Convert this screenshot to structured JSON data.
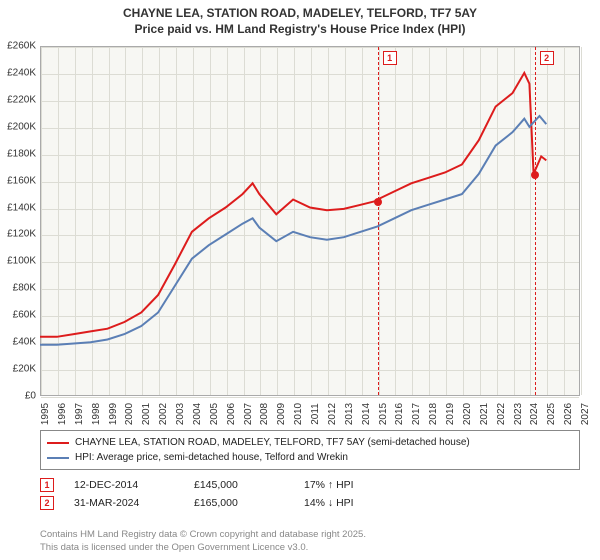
{
  "title_line1": "CHAYNE LEA, STATION ROAD, MADELEY, TELFORD, TF7 5AY",
  "title_line2": "Price paid vs. HM Land Registry's House Price Index (HPI)",
  "chart": {
    "type": "line",
    "background_color": "#f7f7f3",
    "grid_color": "#dcdcd4",
    "border_color": "#aaaaaa",
    "xlim": [
      1995,
      2027
    ],
    "ylim": [
      0,
      260000
    ],
    "xtick_step": 1,
    "ytick_step": 20000,
    "ytick_labels": [
      "£0",
      "£20K",
      "£40K",
      "£60K",
      "£80K",
      "£100K",
      "£120K",
      "£140K",
      "£160K",
      "£180K",
      "£200K",
      "£220K",
      "£240K",
      "£260K"
    ],
    "xtick_labels": [
      "1995",
      "1996",
      "1997",
      "1998",
      "1999",
      "2000",
      "2001",
      "2002",
      "2003",
      "2004",
      "2005",
      "2006",
      "2007",
      "2008",
      "2009",
      "2010",
      "2011",
      "2012",
      "2013",
      "2014",
      "2015",
      "2016",
      "2017",
      "2018",
      "2019",
      "2020",
      "2021",
      "2022",
      "2023",
      "2024",
      "2025",
      "2026",
      "2027"
    ],
    "series": [
      {
        "name": "CHAYNE LEA, STATION ROAD, MADELEY, TELFORD, TF7 5AY (semi-detached house)",
        "color": "#dd1c1c",
        "line_width": 2,
        "points": [
          [
            1995,
            44000
          ],
          [
            1996,
            44000
          ],
          [
            1997,
            46000
          ],
          [
            1998,
            48000
          ],
          [
            1999,
            50000
          ],
          [
            2000,
            55000
          ],
          [
            2001,
            62000
          ],
          [
            2002,
            75000
          ],
          [
            2003,
            98000
          ],
          [
            2004,
            122000
          ],
          [
            2005,
            132000
          ],
          [
            2006,
            140000
          ],
          [
            2007,
            150000
          ],
          [
            2007.6,
            158000
          ],
          [
            2008,
            150000
          ],
          [
            2009,
            135000
          ],
          [
            2010,
            146000
          ],
          [
            2011,
            140000
          ],
          [
            2012,
            138000
          ],
          [
            2013,
            139000
          ],
          [
            2014,
            142000
          ],
          [
            2014.95,
            145000
          ],
          [
            2015,
            146000
          ],
          [
            2016,
            152000
          ],
          [
            2017,
            158000
          ],
          [
            2018,
            162000
          ],
          [
            2019,
            166000
          ],
          [
            2020,
            172000
          ],
          [
            2021,
            190000
          ],
          [
            2022,
            215000
          ],
          [
            2023,
            225000
          ],
          [
            2023.7,
            240000
          ],
          [
            2024,
            232000
          ],
          [
            2024.25,
            165000
          ],
          [
            2024.7,
            178000
          ],
          [
            2025,
            175000
          ]
        ]
      },
      {
        "name": "HPI: Average price, semi-detached house, Telford and Wrekin",
        "color": "#5b7fb5",
        "line_width": 2,
        "points": [
          [
            1995,
            38000
          ],
          [
            1996,
            38000
          ],
          [
            1997,
            39000
          ],
          [
            1998,
            40000
          ],
          [
            1999,
            42000
          ],
          [
            2000,
            46000
          ],
          [
            2001,
            52000
          ],
          [
            2002,
            62000
          ],
          [
            2003,
            82000
          ],
          [
            2004,
            102000
          ],
          [
            2005,
            112000
          ],
          [
            2006,
            120000
          ],
          [
            2007,
            128000
          ],
          [
            2007.6,
            132000
          ],
          [
            2008,
            125000
          ],
          [
            2009,
            115000
          ],
          [
            2010,
            122000
          ],
          [
            2011,
            118000
          ],
          [
            2012,
            116000
          ],
          [
            2013,
            118000
          ],
          [
            2014,
            122000
          ],
          [
            2015,
            126000
          ],
          [
            2016,
            132000
          ],
          [
            2017,
            138000
          ],
          [
            2018,
            142000
          ],
          [
            2019,
            146000
          ],
          [
            2020,
            150000
          ],
          [
            2021,
            165000
          ],
          [
            2022,
            186000
          ],
          [
            2023,
            196000
          ],
          [
            2023.7,
            206000
          ],
          [
            2024,
            200000
          ],
          [
            2024.6,
            208000
          ],
          [
            2025,
            202000
          ]
        ]
      }
    ],
    "markers": [
      {
        "num": "1",
        "x": 2014.95,
        "y": 145000
      },
      {
        "num": "2",
        "x": 2024.25,
        "y": 165000
      }
    ]
  },
  "legend_items": [
    {
      "color": "#dd1c1c",
      "label": "CHAYNE LEA, STATION ROAD, MADELEY, TELFORD, TF7 5AY (semi-detached house)"
    },
    {
      "color": "#5b7fb5",
      "label": "HPI: Average price, semi-detached house, Telford and Wrekin"
    }
  ],
  "sales": [
    {
      "num": "1",
      "date": "12-DEC-2014",
      "price": "£145,000",
      "diff": "17% ↑ HPI"
    },
    {
      "num": "2",
      "date": "31-MAR-2024",
      "price": "£165,000",
      "diff": "14% ↓ HPI"
    }
  ],
  "footer_line1": "Contains HM Land Registry data © Crown copyright and database right 2025.",
  "footer_line2": "This data is licensed under the Open Government Licence v3.0.",
  "colors": {
    "marker_border": "#dd1c1c",
    "footer_text": "#888888"
  },
  "fontsize": {
    "title": 12,
    "tick": 10,
    "legend": 10,
    "sales": 10.5,
    "footer": 9.5
  }
}
